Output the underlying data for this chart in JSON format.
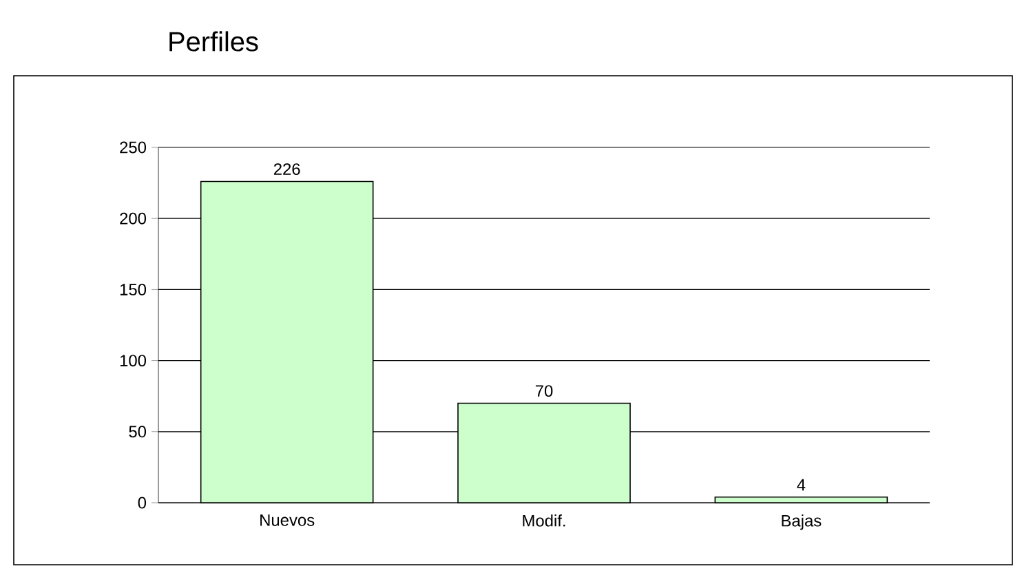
{
  "chart_data": {
    "type": "bar",
    "title": "Perfiles",
    "categories": [
      "Nuevos",
      "Modif.",
      "Bajas"
    ],
    "values": [
      226,
      70,
      4
    ],
    "color": "#ccffcc",
    "ylim": [
      0,
      250
    ],
    "yticks": [
      0,
      50,
      100,
      150,
      200,
      250
    ],
    "grid": "y",
    "data_labels": true
  }
}
